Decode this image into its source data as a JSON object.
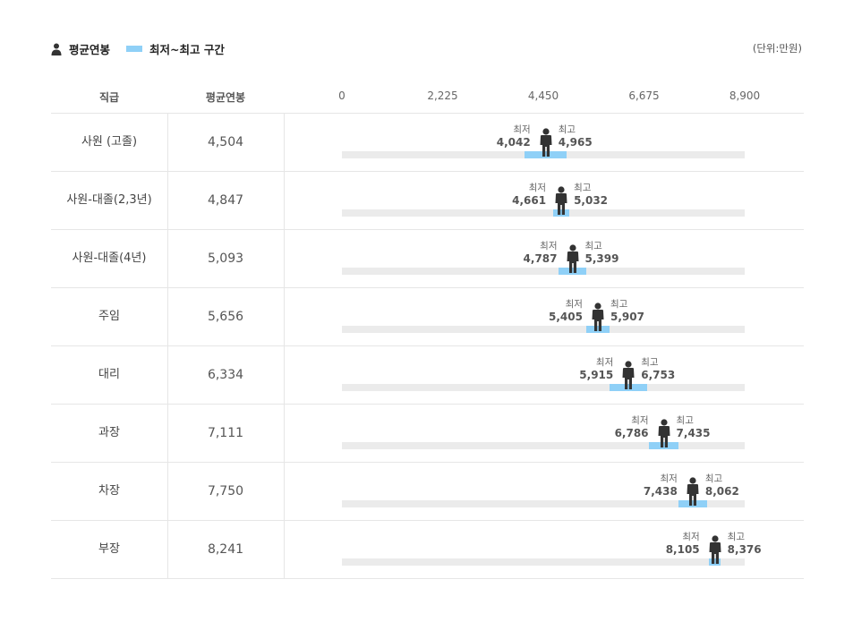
{
  "legend": {
    "avg_label": "평균연봉",
    "range_label": "최저~최고 구간",
    "unit": "(단위:만원)"
  },
  "headers": {
    "rank": "직급",
    "avg": "평균연봉"
  },
  "labels": {
    "min": "최저",
    "max": "최고"
  },
  "colors": {
    "range": "#8fd0f7",
    "track": "#ebebeb",
    "icon": "#333333"
  },
  "chart_data": {
    "type": "range_bar",
    "x_axis": {
      "min": 0,
      "max": 8900,
      "ticks": [
        0,
        2225,
        4450,
        6675,
        8900
      ],
      "tick_labels": [
        "0",
        "2,225",
        "4,450",
        "6,675",
        "8,900"
      ]
    },
    "unit": "만원",
    "rows": [
      {
        "rank": "사원 (고졸)",
        "avg": 4504,
        "avg_label": "4,504",
        "min": 4042,
        "min_label": "4,042",
        "max": 4965,
        "max_label": "4,965"
      },
      {
        "rank": "사원-대졸(2,3년)",
        "avg": 4847,
        "avg_label": "4,847",
        "min": 4661,
        "min_label": "4,661",
        "max": 5032,
        "max_label": "5,032"
      },
      {
        "rank": "사원-대졸(4년)",
        "avg": 5093,
        "avg_label": "5,093",
        "min": 4787,
        "min_label": "4,787",
        "max": 5399,
        "max_label": "5,399"
      },
      {
        "rank": "주임",
        "avg": 5656,
        "avg_label": "5,656",
        "min": 5405,
        "min_label": "5,405",
        "max": 5907,
        "max_label": "5,907"
      },
      {
        "rank": "대리",
        "avg": 6334,
        "avg_label": "6,334",
        "min": 5915,
        "min_label": "5,915",
        "max": 6753,
        "max_label": "6,753"
      },
      {
        "rank": "과장",
        "avg": 7111,
        "avg_label": "7,111",
        "min": 6786,
        "min_label": "6,786",
        "max": 7435,
        "max_label": "7,435"
      },
      {
        "rank": "차장",
        "avg": 7750,
        "avg_label": "7,750",
        "min": 7438,
        "min_label": "7,438",
        "max": 8062,
        "max_label": "8,062"
      },
      {
        "rank": "부장",
        "avg": 8241,
        "avg_label": "8,241",
        "min": 8105,
        "min_label": "8,105",
        "max": 8376,
        "max_label": "8,376"
      }
    ]
  }
}
